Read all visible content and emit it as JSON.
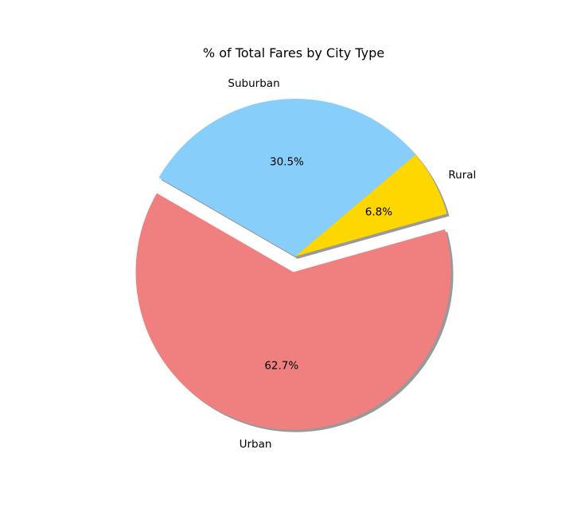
{
  "chart_data": {
    "type": "pie",
    "title": "% of Total Fares by City Type",
    "slices": [
      {
        "label": "Urban",
        "value": 62.7,
        "pct_label": "62.7%",
        "color": "#F08080",
        "exploded": true
      },
      {
        "label": "Rural",
        "value": 6.8,
        "pct_label": "6.8%",
        "color": "#FFD700",
        "exploded": false
      },
      {
        "label": "Suburban",
        "value": 30.5,
        "pct_label": "30.5%",
        "color": "#87CEFA",
        "exploded": false
      }
    ],
    "start_angle_deg": 150,
    "shadow": true
  }
}
